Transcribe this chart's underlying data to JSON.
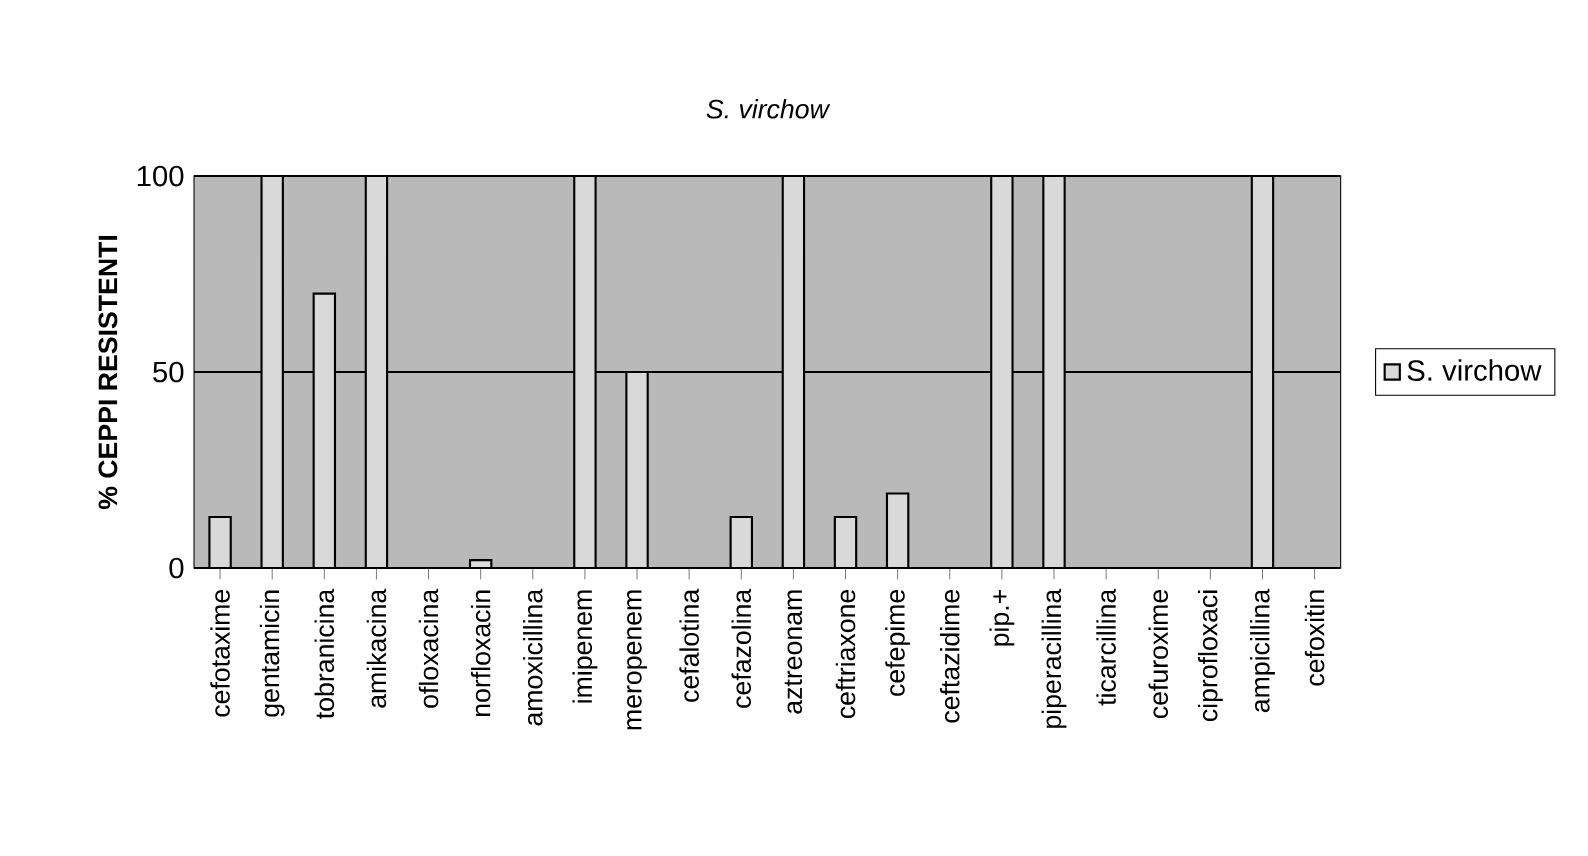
{
  "chart_data": {
    "type": "bar",
    "title": "S. virchow",
    "ylabel": "% CEPPI RESISTENTI",
    "categories": [
      "cefotaxime",
      "gentamicin",
      "tobranicina",
      "amikacina",
      "ofloxacina",
      "norfloxacin",
      "amoxicillina",
      "imipenem",
      "meropenem",
      "cefalotina",
      "cefazolina",
      "aztreonam",
      "ceftriaxone",
      "cefepime",
      "ceftazidime",
      "pip.+",
      "piperacillina",
      "ticarcillina",
      "cefuroxime",
      "ciprofloxaci",
      "ampicillina",
      "cefoxitin"
    ],
    "series": [
      {
        "name": "S. virchow",
        "color": "#d9d9d9",
        "values": [
          13,
          100,
          70,
          100,
          0,
          2,
          0,
          100,
          50,
          0,
          13,
          100,
          13,
          19,
          0,
          100,
          100,
          0,
          0,
          0,
          100,
          0
        ]
      }
    ],
    "ylim": [
      0,
      100
    ],
    "yticks": [
      0,
      50,
      100
    ],
    "grid": "y",
    "legend": "right"
  }
}
